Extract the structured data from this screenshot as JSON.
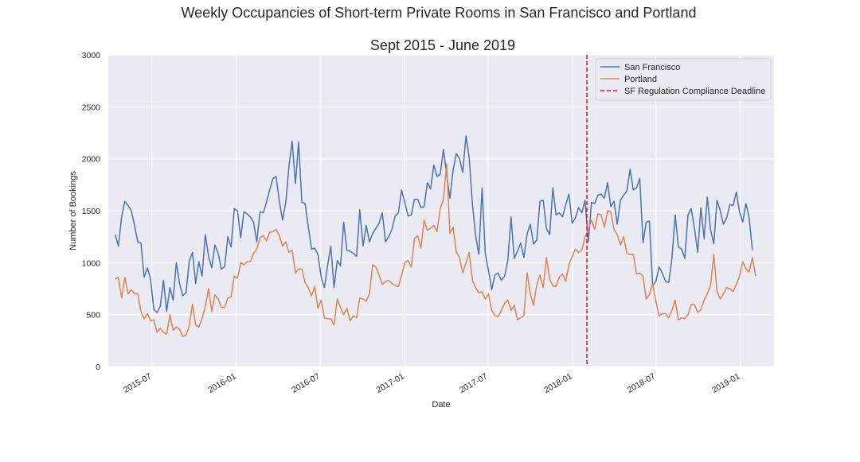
{
  "chart_data": {
    "type": "line",
    "title": "Weekly Occupancies of Short-term Private Rooms in San Francisco and Portland",
    "subtitle": "Sept 2015 - June 2019",
    "xlabel": "Date",
    "ylabel": "Number of Bookings",
    "ylim": [
      0,
      3000
    ],
    "yticks": [
      0,
      500,
      1000,
      1500,
      2000,
      2500,
      3000
    ],
    "xlim": [
      "2015-03-28",
      "2019-03-15"
    ],
    "xticks": [
      "2015-07",
      "2016-01",
      "2016-07",
      "2017-01",
      "2017-07",
      "2018-01",
      "2018-07",
      "2019-01"
    ],
    "grid": true,
    "legend_position": "top-right",
    "start_date": "2015-04-12",
    "interval_days": 7,
    "series": [
      {
        "name": "San Francisco",
        "color": "#4c72b0",
        "values": [
          1270,
          1160,
          1440,
          1590,
          1550,
          1500,
          1360,
          1200,
          1190,
          860,
          950,
          840,
          550,
          520,
          580,
          830,
          530,
          760,
          640,
          1000,
          800,
          680,
          710,
          1010,
          1100,
          800,
          1010,
          870,
          1270,
          1060,
          950,
          1170,
          1090,
          940,
          960,
          1250,
          1150,
          1520,
          1500,
          1240,
          1490,
          1470,
          1440,
          1390,
          1200,
          1490,
          1480,
          1580,
          1700,
          1810,
          1830,
          1590,
          1410,
          1580,
          1930,
          2170,
          1760,
          2160,
          1580,
          1570,
          1350,
          1130,
          1140,
          1080,
          860,
          760,
          970,
          1160,
          760,
          1020,
          970,
          1390,
          1120,
          1110,
          1090,
          1060,
          1510,
          1160,
          1360,
          1200,
          1280,
          1330,
          1380,
          1480,
          1200,
          1250,
          1320,
          1450,
          1480,
          1700,
          1580,
          1450,
          1460,
          1610,
          1610,
          1530,
          1540,
          1770,
          1710,
          1940,
          1830,
          1850,
          2090,
          1850,
          1620,
          1890,
          2050,
          2000,
          1870,
          2220,
          2010,
          1560,
          1260,
          1080,
          1720,
          1090,
          920,
          740,
          880,
          900,
          830,
          870,
          1020,
          1440,
          1040,
          1110,
          1190,
          1050,
          1280,
          1370,
          1180,
          1220,
          1590,
          1600,
          1330,
          1270,
          1720,
          1460,
          1480,
          1440,
          1560,
          1660,
          1380,
          1430,
          1530,
          1480,
          1600,
          1200,
          1580,
          1570,
          1650,
          1660,
          1620,
          1770,
          1540,
          1590,
          1370,
          1600,
          1650,
          1690,
          1900,
          1700,
          1720,
          1810,
          1190,
          1390,
          1400,
          780,
          820,
          960,
          900,
          820,
          810,
          1040,
          1460,
          1150,
          1130,
          1040,
          1460,
          1520,
          1330,
          1100,
          1530,
          1230,
          1630,
          1320,
          1180,
          1600,
          1500,
          1370,
          1430,
          1560,
          1550,
          1680,
          1490,
          1390,
          1570,
          1430,
          1120
        ]
      },
      {
        "name": "Portland",
        "color": "#dd8452",
        "values": [
          840,
          860,
          660,
          860,
          700,
          740,
          700,
          700,
          530,
          460,
          510,
          440,
          450,
          330,
          370,
          330,
          310,
          500,
          350,
          380,
          360,
          290,
          300,
          390,
          600,
          400,
          380,
          460,
          580,
          750,
          530,
          690,
          650,
          570,
          570,
          660,
          670,
          870,
          850,
          1000,
          980,
          1010,
          1010,
          1090,
          1130,
          1240,
          1260,
          1210,
          1290,
          1300,
          1320,
          1260,
          1160,
          1200,
          1100,
          1120,
          900,
          940,
          940,
          810,
          760,
          680,
          770,
          560,
          640,
          470,
          460,
          460,
          400,
          650,
          570,
          500,
          560,
          440,
          490,
          470,
          660,
          650,
          630,
          700,
          980,
          960,
          880,
          790,
          820,
          830,
          800,
          780,
          770,
          880,
          1000,
          1020,
          960,
          1230,
          1260,
          1140,
          1410,
          1310,
          1330,
          1360,
          1300,
          1520,
          1610,
          1950,
          1280,
          1340,
          1100,
          1050,
          900,
          1000,
          1100,
          830,
          760,
          710,
          720,
          650,
          700,
          540,
          490,
          480,
          540,
          610,
          640,
          540,
          590,
          450,
          470,
          490,
          900,
          700,
          590,
          790,
          880,
          760,
          1050,
          840,
          780,
          770,
          860,
          890,
          820,
          980,
          1060,
          1130,
          1100,
          1120,
          1250,
          1320,
          1410,
          1320,
          1470,
          1460,
          1340,
          1500,
          1490,
          1320,
          1270,
          1170,
          1250,
          1090,
          1080,
          1080,
          890,
          900,
          870,
          650,
          690,
          800,
          630,
          490,
          510,
          510,
          470,
          540,
          640,
          450,
          470,
          460,
          500,
          600,
          600,
          520,
          550,
          640,
          700,
          780,
          1080,
          720,
          650,
          700,
          760,
          750,
          720,
          790,
          870,
          1010,
          940,
          910,
          1050,
          870
        ]
      }
    ],
    "annotations": [
      {
        "type": "vline",
        "label": "SF Regulation Compliance Deadline",
        "x": "2018-02-01",
        "color": "#e41a1c"
      }
    ]
  }
}
